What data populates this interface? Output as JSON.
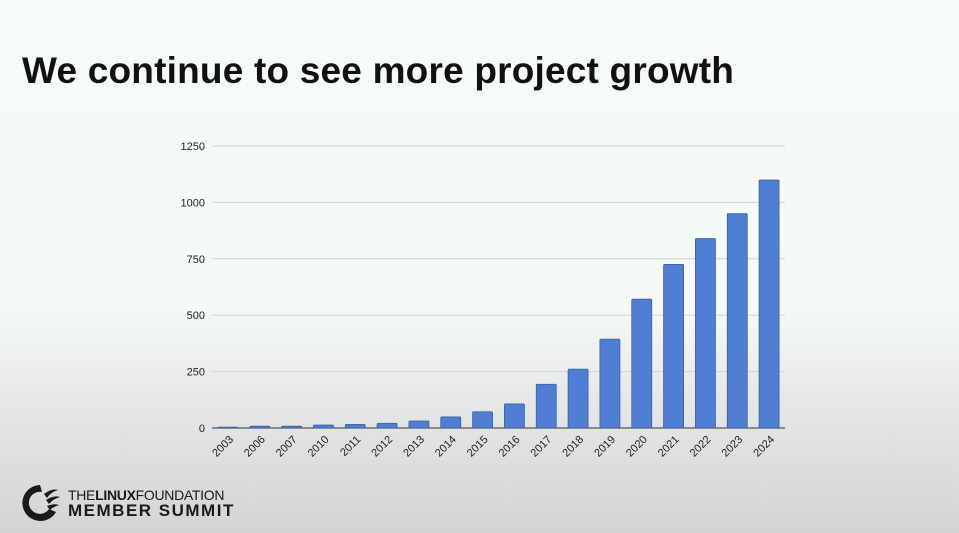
{
  "slide": {
    "title": "We continue to see more project growth",
    "logo": {
      "the": "THE",
      "linux": "LINUX",
      "foundation": "FOUNDATION",
      "event": "MEMBER SUMMIT"
    }
  },
  "colors": {
    "bar": "#4f7fd4",
    "bar_edge": "#3d5f9e",
    "grid": "#cfd3d1",
    "axis": "#555555"
  },
  "chart_data": {
    "type": "bar",
    "title": "",
    "xlabel": "",
    "ylabel": "",
    "categories": [
      "2003",
      "2006",
      "2007",
      "2010",
      "2011",
      "2012",
      "2013",
      "2014",
      "2015",
      "2016",
      "2017",
      "2018",
      "2019",
      "2020",
      "2021",
      "2022",
      "2023",
      "2024"
    ],
    "values": [
      4,
      8,
      8,
      13,
      16,
      21,
      31,
      49,
      72,
      107,
      194,
      261,
      394,
      571,
      725,
      840,
      950,
      1099
    ],
    "ylim": [
      0,
      1250
    ],
    "yticks": [
      0,
      250,
      500,
      750,
      1000,
      1250
    ],
    "grid": true,
    "legend": "none"
  }
}
